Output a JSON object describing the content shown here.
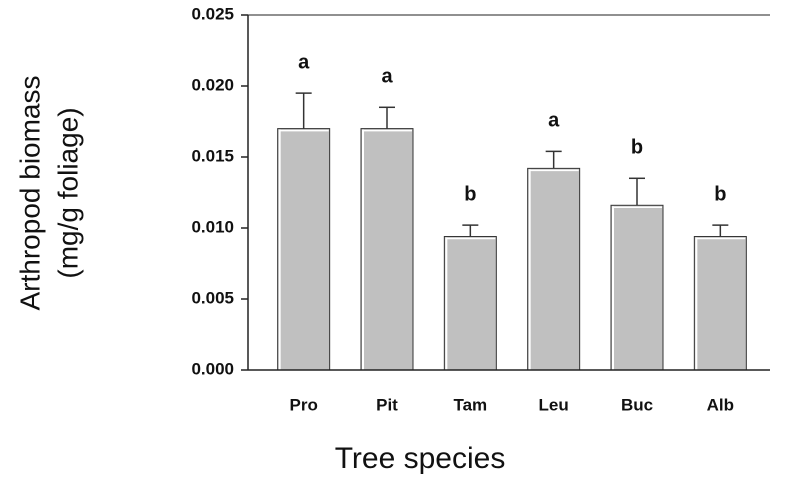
{
  "chart_data": {
    "type": "bar",
    "xlabel": "Tree species",
    "ylabel": [
      "Arthropod biomass",
      "(mg/g foliage)"
    ],
    "categories": [
      "Pro",
      "Pit",
      "Tam",
      "Leu",
      "Buc",
      "Alb"
    ],
    "values": [
      0.017,
      0.017,
      0.0094,
      0.0142,
      0.0116,
      0.0094
    ],
    "errors": [
      0.0025,
      0.0015,
      0.0008,
      0.0012,
      0.0019,
      0.0008
    ],
    "annotations": [
      "a",
      "a",
      "b",
      "a",
      "b",
      "b"
    ],
    "color": "#c0c0c0",
    "ylim": [
      0,
      0.025
    ],
    "yticks": [
      {
        "value": 0,
        "label": "0.000"
      },
      0.005,
      {
        "value": 0.01,
        "label": "0.010"
      },
      0.015,
      {
        "value": 0.02,
        "label": "0.020"
      },
      0.025
    ]
  }
}
